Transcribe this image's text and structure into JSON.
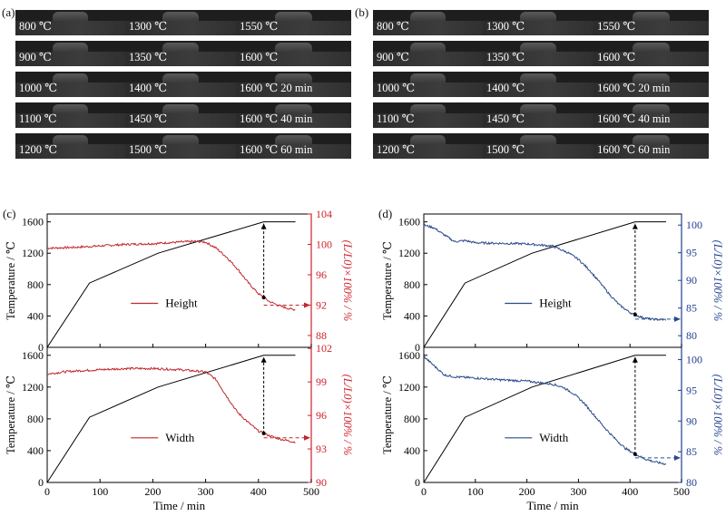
{
  "panels": {
    "a": "(a)",
    "b": "(b)",
    "c": "(c)",
    "d": "(d)"
  },
  "image_grid": {
    "rows": [
      [
        "800 ℃",
        "1300 ℃",
        "1550 ℃"
      ],
      [
        "900 ℃",
        "1350 ℃",
        "1600 ℃"
      ],
      [
        "1000 ℃",
        "1400 ℃",
        "1600 ℃ 20 min"
      ],
      [
        "1100 ℃",
        "1450 ℃",
        "1600 ℃ 40 min"
      ],
      [
        "1200 ℃",
        "1500 ℃",
        "1600 ℃ 60 min"
      ]
    ]
  },
  "colors": {
    "temperature_line": "#000000",
    "red_series": "#c0272d",
    "blue_series": "#2b4a8a",
    "red_axis": "#d0202a",
    "blue_axis": "#1f3f8f"
  },
  "chart_data": [
    {
      "id": "c-top",
      "type": "line",
      "xlabel": "",
      "ylabel": "Temperature / ℃",
      "y2label": "(L/L0)×100% / %",
      "xlim": [
        0,
        500
      ],
      "ylim": [
        0,
        1700
      ],
      "y2lim": [
        86.44,
        104
      ],
      "xticks": [
        0,
        100,
        200,
        300,
        400,
        500
      ],
      "yticks": [
        0,
        400,
        800,
        1200,
        1600
      ],
      "y2ticks": [
        88,
        92,
        96,
        100,
        104
      ],
      "legend": "Height",
      "temperature": {
        "x": [
          0,
          80,
          210,
          410,
          470
        ],
        "y": [
          0,
          820,
          1200,
          1600,
          1600
        ]
      },
      "series": {
        "name": "Height",
        "x": [
          0,
          50,
          100,
          150,
          200,
          250,
          280,
          300,
          320,
          340,
          360,
          380,
          400,
          410,
          420,
          440,
          460,
          470
        ],
        "y": [
          99.5,
          99.6,
          99.8,
          100,
          100.1,
          100.3,
          100.4,
          100.3,
          99.5,
          98.3,
          96.8,
          95.0,
          93.5,
          93.0,
          92.5,
          91.9,
          91.5,
          91.4
        ]
      },
      "annotation_arrow_up_x": 410,
      "annotation_arrow_right_value": 92
    },
    {
      "id": "c-bottom",
      "type": "line",
      "xlabel": "Time / min",
      "ylabel": "Temperature / ℃",
      "y2label": "(L/L0)×100% / %",
      "xlim": [
        0,
        500
      ],
      "ylim": [
        0,
        1700
      ],
      "y2lim": [
        90,
        102.1
      ],
      "xticks": [
        0,
        100,
        200,
        300,
        400,
        500
      ],
      "yticks": [
        0,
        400,
        800,
        1200,
        1600
      ],
      "y2ticks": [
        90,
        93,
        96,
        99,
        102
      ],
      "legend": "Width",
      "temperature": {
        "x": [
          0,
          80,
          210,
          410,
          470
        ],
        "y": [
          0,
          820,
          1200,
          1600,
          1600
        ]
      },
      "series": {
        "name": "Width",
        "x": [
          0,
          30,
          60,
          100,
          150,
          200,
          250,
          300,
          320,
          340,
          360,
          380,
          400,
          410,
          420,
          440,
          460,
          470
        ],
        "y": [
          99.7,
          99.9,
          100.0,
          100.1,
          100.2,
          100.2,
          100.1,
          99.9,
          99.2,
          97.7,
          96.3,
          95.4,
          94.6,
          94.4,
          94.2,
          93.9,
          93.7,
          93.6
        ]
      },
      "annotation_arrow_up_x": 410,
      "annotation_arrow_right_value": 94
    },
    {
      "id": "d-top",
      "type": "line",
      "xlabel": "",
      "ylabel": "Temperature / ℃",
      "y2label": "(L/L0)×100% / %",
      "xlim": [
        0,
        500
      ],
      "ylim": [
        0,
        1700
      ],
      "y2lim": [
        77.9,
        102
      ],
      "xticks": [
        0,
        100,
        200,
        300,
        400,
        500
      ],
      "yticks": [
        0,
        400,
        800,
        1200,
        1600
      ],
      "y2ticks": [
        80,
        85,
        90,
        95,
        100
      ],
      "legend": "Height",
      "temperature": {
        "x": [
          0,
          80,
          210,
          410,
          470
        ],
        "y": [
          0,
          820,
          1200,
          1600,
          1600
        ]
      },
      "series": {
        "name": "Height",
        "x": [
          0,
          20,
          40,
          60,
          80,
          100,
          150,
          200,
          250,
          280,
          300,
          320,
          340,
          360,
          380,
          400,
          420,
          440,
          460,
          470
        ],
        "y": [
          100.0,
          99.5,
          98.2,
          97.0,
          97.2,
          96.8,
          96.7,
          96.6,
          96.2,
          95.0,
          93.8,
          92.0,
          89.8,
          87.5,
          85.5,
          84.2,
          83.4,
          83.0,
          82.9,
          82.9
        ]
      },
      "annotation_arrow_up_x": 410,
      "annotation_arrow_right_value": 83
    },
    {
      "id": "d-bottom",
      "type": "line",
      "xlabel": "Time / min",
      "ylabel": "Temperature / ℃",
      "y2label": "(L/L0)×100% / %",
      "xlim": [
        0,
        500
      ],
      "ylim": [
        0,
        1700
      ],
      "y2lim": [
        80,
        102
      ],
      "xticks": [
        0,
        100,
        200,
        300,
        400,
        500
      ],
      "yticks": [
        0,
        400,
        800,
        1200,
        1600
      ],
      "y2ticks": [
        80,
        85,
        90,
        95,
        100
      ],
      "legend": "Width",
      "temperature": {
        "x": [
          0,
          80,
          210,
          410,
          470
        ],
        "y": [
          0,
          820,
          1200,
          1600,
          1600
        ]
      },
      "series": {
        "name": "Width",
        "x": [
          0,
          20,
          40,
          60,
          100,
          150,
          200,
          250,
          270,
          290,
          310,
          330,
          350,
          370,
          390,
          410,
          430,
          450,
          470
        ],
        "y": [
          100.5,
          99.0,
          97.5,
          97.2,
          97.0,
          96.7,
          96.5,
          96.0,
          95.5,
          94.5,
          93.0,
          91.0,
          89.0,
          87.2,
          85.6,
          84.6,
          83.8,
          83.3,
          83.0
        ]
      },
      "annotation_arrow_up_x": 410,
      "annotation_arrow_right_value": 84
    }
  ],
  "labels": {
    "temperature_axis": "Temperature / ℃",
    "ratio_axis": "(L/L0)×100% / %",
    "time_axis": "Time / min"
  }
}
